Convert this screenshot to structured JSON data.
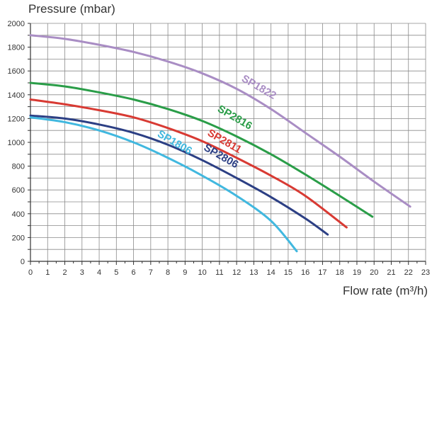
{
  "chart_data": {
    "type": "line",
    "title": "",
    "ylabel": "Pressure (mbar)",
    "xlabel": "Flow rate (m³/h)",
    "xlim": [
      0,
      23
    ],
    "ylim": [
      0,
      2000
    ],
    "x_ticks": [
      "0",
      "1",
      "2",
      "3",
      "4",
      "5",
      "6",
      "7",
      "8",
      "9",
      "10",
      "11",
      "12",
      "13",
      "14",
      "15",
      "16",
      "17",
      "18",
      "19",
      "20",
      "21",
      "22",
      "23"
    ],
    "y_ticks": [
      "0",
      "200",
      "400",
      "600",
      "800",
      "1000",
      "1200",
      "1400",
      "1600",
      "1800",
      "2000"
    ],
    "grid": true,
    "series": [
      {
        "name": "SP1822",
        "color": "#a98dc4",
        "x": [
          0,
          2,
          4,
          6,
          8,
          10,
          12,
          14,
          16,
          18,
          20,
          22.1
        ],
        "y": [
          1900,
          1870,
          1820,
          1760,
          1680,
          1580,
          1450,
          1280,
          1080,
          880,
          670,
          460
        ]
      },
      {
        "name": "SP2816",
        "color": "#2a9d48",
        "x": [
          0,
          2,
          4,
          6,
          8,
          10,
          12,
          14,
          16,
          18,
          19.9
        ],
        "y": [
          1500,
          1470,
          1420,
          1360,
          1280,
          1180,
          1050,
          900,
          730,
          550,
          375
        ]
      },
      {
        "name": "SP2811",
        "color": "#d83a33",
        "x": [
          0,
          2,
          4,
          6,
          8,
          10,
          12,
          14,
          16,
          18.4
        ],
        "y": [
          1360,
          1320,
          1270,
          1210,
          1120,
          1010,
          870,
          720,
          550,
          285
        ]
      },
      {
        "name": "SP2806",
        "color": "#2c3f84",
        "x": [
          0,
          2,
          4,
          6,
          8,
          10,
          12,
          14,
          16,
          17.3
        ],
        "y": [
          1225,
          1200,
          1150,
          1080,
          980,
          850,
          700,
          540,
          360,
          225
        ]
      },
      {
        "name": "SP1806",
        "color": "#41b8df",
        "x": [
          0,
          2,
          4,
          6,
          8,
          10,
          12,
          14,
          15.5
        ],
        "y": [
          1210,
          1170,
          1100,
          1000,
          870,
          720,
          550,
          340,
          85
        ]
      }
    ]
  }
}
